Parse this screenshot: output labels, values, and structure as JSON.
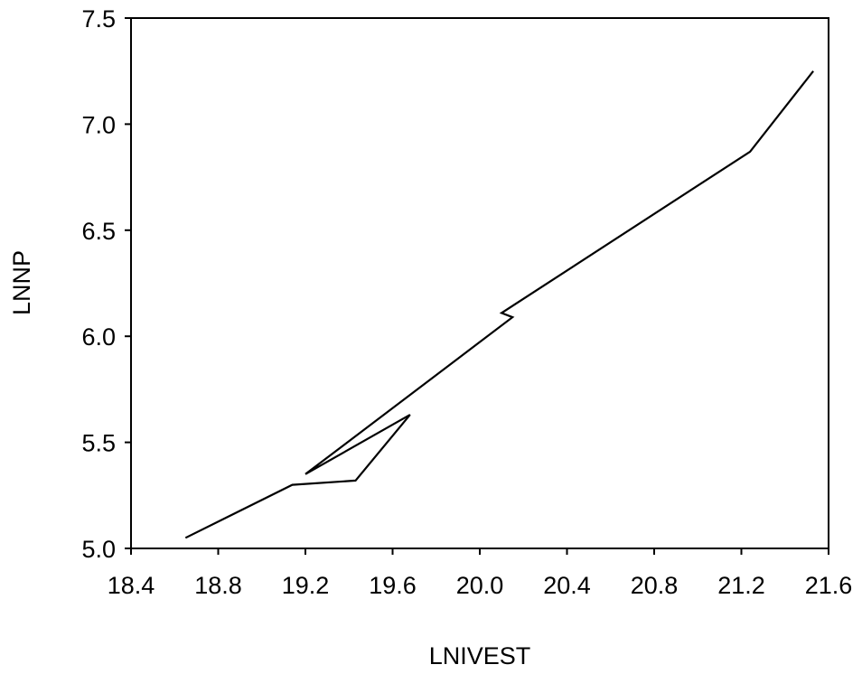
{
  "chart_data": {
    "type": "line",
    "title": "",
    "xlabel": "LNIVEST",
    "ylabel": "LNNP",
    "xlim": [
      18.4,
      21.6
    ],
    "ylim": [
      5.0,
      7.5
    ],
    "x_ticks": [
      "18.4",
      "18.8",
      "19.2",
      "19.6",
      "20.0",
      "20.4",
      "20.8",
      "21.2",
      "21.6"
    ],
    "y_ticks": [
      "5.0",
      "5.5",
      "6.0",
      "6.5",
      "7.0",
      "7.5"
    ],
    "grid": false,
    "line_color": "#000000",
    "series": [
      {
        "x": [
          18.65,
          19.14,
          19.43,
          19.68,
          19.2,
          20.15,
          20.1,
          21.24,
          21.53
        ],
        "y": [
          5.05,
          5.3,
          5.32,
          5.63,
          5.35,
          6.09,
          6.11,
          6.87,
          7.25
        ]
      }
    ]
  }
}
